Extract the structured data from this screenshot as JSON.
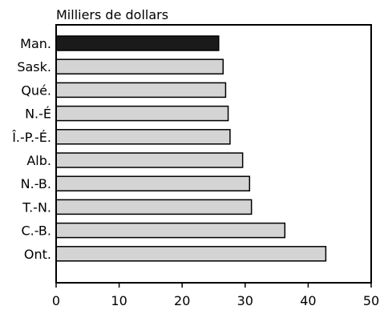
{
  "chart_data": {
    "type": "bar",
    "orientation": "horizontal",
    "title": "",
    "ylabel": "Milliers de dollars",
    "xlabel": "",
    "categories": [
      "Man.",
      "Sask.",
      "Qué.",
      "N.-É",
      "Î.-P.-É.",
      "Alb.",
      "N.-B.",
      "T.-N.",
      "C.-B.",
      "Ont."
    ],
    "values": [
      25.8,
      26.5,
      26.9,
      27.3,
      27.6,
      29.6,
      30.7,
      31.0,
      36.3,
      42.8
    ],
    "highlight_index": 0,
    "xlim": [
      0,
      50
    ],
    "xticks": [
      "0",
      "10",
      "20",
      "30",
      "40",
      "50"
    ],
    "grid": false,
    "colors": {
      "highlight": "#1a1a1a",
      "bar": "#d4d4d4",
      "stroke": "#000000"
    }
  }
}
